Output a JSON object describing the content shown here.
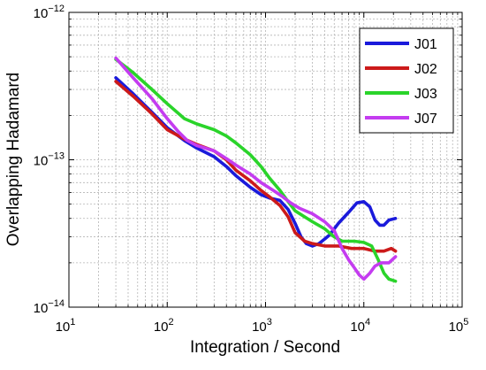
{
  "chart_data": {
    "type": "line",
    "title": "",
    "xlabel": "Integration / Second",
    "ylabel": "Overlapping Hadamard",
    "xscale": "log",
    "yscale": "log",
    "xlim": [
      10,
      100000
    ],
    "ylim": [
      1e-14,
      1e-12
    ],
    "grid": true,
    "legend_position": "top-right",
    "x_ticks": [
      {
        "value": 10,
        "base": "10",
        "exp": "1"
      },
      {
        "value": 100,
        "base": "10",
        "exp": "2"
      },
      {
        "value": 1000,
        "base": "10",
        "exp": "3"
      },
      {
        "value": 10000,
        "base": "10",
        "exp": "4"
      },
      {
        "value": 100000,
        "base": "10",
        "exp": "5"
      }
    ],
    "y_ticks": [
      {
        "value": 1e-14,
        "base": "10",
        "exp": "−14"
      },
      {
        "value": 1e-13,
        "base": "10",
        "exp": "−13"
      },
      {
        "value": 1e-12,
        "base": "10",
        "exp": "−12"
      }
    ],
    "series": [
      {
        "name": "J01",
        "color": "#1a1adb",
        "points": [
          [
            30,
            3.6e-13
          ],
          [
            45,
            2.8e-13
          ],
          [
            70,
            2.1e-13
          ],
          [
            100,
            1.65e-13
          ],
          [
            150,
            1.35e-13
          ],
          [
            200,
            1.2e-13
          ],
          [
            300,
            1.05e-13
          ],
          [
            400,
            9e-14
          ],
          [
            500,
            7.8e-14
          ],
          [
            700,
            6.5e-14
          ],
          [
            900,
            5.8e-14
          ],
          [
            1100,
            5.5e-14
          ],
          [
            1400,
            5.3e-14
          ],
          [
            1700,
            4.6e-14
          ],
          [
            2000,
            3.7e-14
          ],
          [
            2300,
            3e-14
          ],
          [
            2600,
            2.7e-14
          ],
          [
            3000,
            2.6e-14
          ],
          [
            3500,
            2.7e-14
          ],
          [
            4000,
            2.9e-14
          ],
          [
            4500,
            3.1e-14
          ],
          [
            5500,
            3.7e-14
          ],
          [
            7000,
            4.4e-14
          ],
          [
            8500,
            5.1e-14
          ],
          [
            10000,
            5.2e-14
          ],
          [
            11500,
            4.8e-14
          ],
          [
            13000,
            3.9e-14
          ],
          [
            14500,
            3.6e-14
          ],
          [
            16000,
            3.6e-14
          ],
          [
            18000,
            3.9e-14
          ],
          [
            21000,
            4e-14
          ]
        ]
      },
      {
        "name": "J02",
        "color": "#cc1a1a",
        "points": [
          [
            30,
            3.4e-13
          ],
          [
            45,
            2.7e-13
          ],
          [
            70,
            2.05e-13
          ],
          [
            100,
            1.6e-13
          ],
          [
            150,
            1.38e-13
          ],
          [
            200,
            1.27e-13
          ],
          [
            300,
            1.15e-13
          ],
          [
            400,
            1e-13
          ],
          [
            500,
            8.5e-14
          ],
          [
            700,
            7.2e-14
          ],
          [
            900,
            6.2e-14
          ],
          [
            1100,
            5.6e-14
          ],
          [
            1400,
            4.9e-14
          ],
          [
            1700,
            4.1e-14
          ],
          [
            2000,
            3.2e-14
          ],
          [
            2500,
            2.8e-14
          ],
          [
            3000,
            2.7e-14
          ],
          [
            4000,
            2.6e-14
          ],
          [
            5500,
            2.6e-14
          ],
          [
            7500,
            2.5e-14
          ],
          [
            10000,
            2.5e-14
          ],
          [
            13000,
            2.4e-14
          ],
          [
            16000,
            2.4e-14
          ],
          [
            19000,
            2.5e-14
          ],
          [
            21000,
            2.4e-14
          ]
        ]
      },
      {
        "name": "J03",
        "color": "#2ad42a",
        "points": [
          [
            30,
            4.8e-13
          ],
          [
            45,
            3.9e-13
          ],
          [
            70,
            3e-13
          ],
          [
            100,
            2.4e-13
          ],
          [
            150,
            1.9e-13
          ],
          [
            200,
            1.75e-13
          ],
          [
            300,
            1.6e-13
          ],
          [
            400,
            1.45e-13
          ],
          [
            500,
            1.3e-13
          ],
          [
            700,
            1.08e-13
          ],
          [
            900,
            9e-14
          ],
          [
            1100,
            7.5e-14
          ],
          [
            1400,
            6.2e-14
          ],
          [
            1700,
            5.2e-14
          ],
          [
            2000,
            4.5e-14
          ],
          [
            2500,
            4.1e-14
          ],
          [
            3000,
            3.8e-14
          ],
          [
            4000,
            3.4e-14
          ],
          [
            5000,
            3e-14
          ],
          [
            6000,
            2.8e-14
          ],
          [
            8000,
            2.8e-14
          ],
          [
            10000,
            2.75e-14
          ],
          [
            12000,
            2.6e-14
          ],
          [
            14000,
            2.1e-14
          ],
          [
            16000,
            1.7e-14
          ],
          [
            18000,
            1.55e-14
          ],
          [
            21000,
            1.5e-14
          ]
        ]
      },
      {
        "name": "J07",
        "color": "#c43cf0",
        "points": [
          [
            30,
            4.9e-13
          ],
          [
            45,
            3.6e-13
          ],
          [
            70,
            2.6e-13
          ],
          [
            100,
            1.9e-13
          ],
          [
            130,
            1.55e-13
          ],
          [
            160,
            1.35e-13
          ],
          [
            200,
            1.25e-13
          ],
          [
            300,
            1.15e-13
          ],
          [
            400,
            1.02e-13
          ],
          [
            500,
            9.2e-14
          ],
          [
            700,
            8e-14
          ],
          [
            900,
            7e-14
          ],
          [
            1200,
            6.2e-14
          ],
          [
            1500,
            5.6e-14
          ],
          [
            1800,
            5.1e-14
          ],
          [
            2200,
            4.7e-14
          ],
          [
            3000,
            4.3e-14
          ],
          [
            4000,
            3.8e-14
          ],
          [
            5000,
            3.3e-14
          ],
          [
            6000,
            2.5e-14
          ],
          [
            7000,
            2.1e-14
          ],
          [
            8000,
            1.85e-14
          ],
          [
            9000,
            1.65e-14
          ],
          [
            10000,
            1.55e-14
          ],
          [
            11500,
            1.7e-14
          ],
          [
            13000,
            1.9e-14
          ],
          [
            15000,
            2e-14
          ],
          [
            18000,
            2e-14
          ],
          [
            21000,
            2.2e-14
          ]
        ]
      }
    ]
  }
}
